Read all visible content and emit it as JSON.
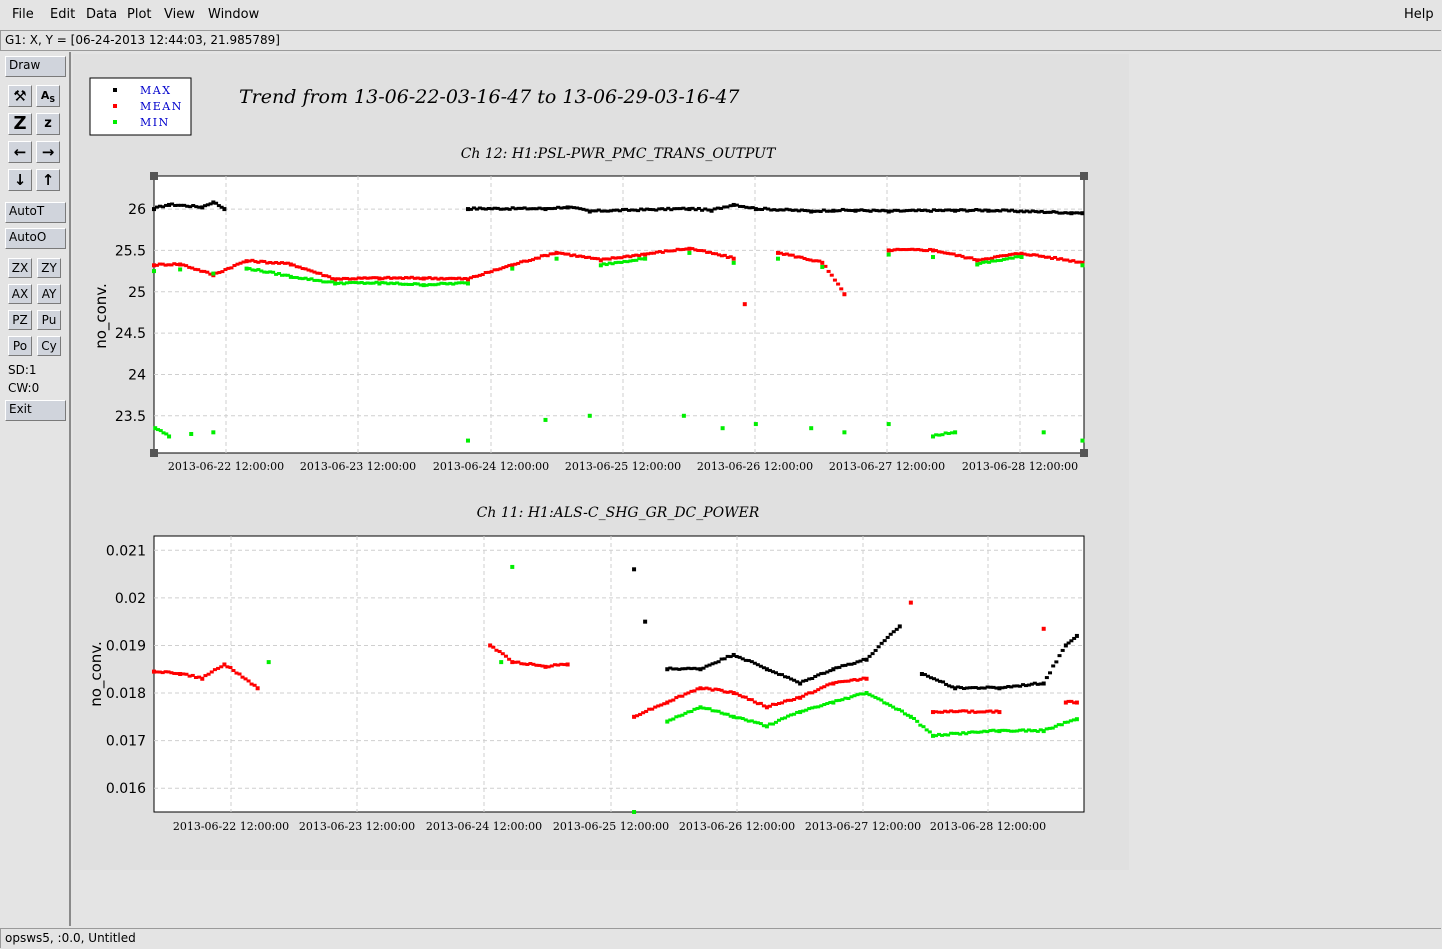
{
  "menus": {
    "file": "File",
    "edit": "Edit",
    "data": "Data",
    "plot": "Plot",
    "view": "View",
    "window": "Window",
    "help": "Help"
  },
  "coord_readout": "G1: X, Y = [06-24-2013 12:44:03, 21.985789]",
  "toolbar": {
    "draw": "Draw",
    "auto_t": "AutoT",
    "auto_o": "AutoO",
    "zx": "ZX",
    "zy": "ZY",
    "ax": "AX",
    "ay": "AY",
    "pz": "PZ",
    "pu": "Pu",
    "po": "Po",
    "cy": "Cy",
    "sd": "SD:1",
    "cw": "CW:0",
    "exit": "Exit"
  },
  "status": "opsws5, :0.0, Untitled",
  "colors": {
    "max": "#000000",
    "mean": "#ff0000",
    "min": "#00ee00",
    "legend_text": "#0000cc"
  },
  "legend": [
    "MAX",
    "MEAN",
    "MIN"
  ],
  "plot_title": "Trend from 13-06-22-03-16-47 to 13-06-29-03-16-47",
  "chart_data": [
    {
      "type": "scatter",
      "title": "Ch 12: H1:PSL-PWR_PMC_TRANS_OUTPUT",
      "ylabel": "no_conv.",
      "xlabel": "",
      "xlim": [
        "2013-06-22 03:16:47",
        "2013-06-29 03:16:47"
      ],
      "ylim": [
        23.05,
        26.4
      ],
      "yticks": [
        23.5,
        24,
        24.5,
        25,
        25.5,
        26
      ],
      "xticks": [
        "2013-06-22 12:00:00",
        "2013-06-23 12:00:00",
        "2013-06-24 12:00:00",
        "2013-06-25 12:00:00",
        "2013-06-26 12:00:00",
        "2013-06-27 12:00:00",
        "2013-06-28 12:00:00"
      ],
      "grid": true,
      "series": [
        {
          "name": "MAX",
          "color": "#000000",
          "points": [
            [
              "2013-06-22 03:16:47",
              26.0
            ],
            [
              "2013-06-22 06:00:00",
              26.05
            ],
            [
              "2013-06-22 12:00:00",
              26.02
            ],
            [
              "2013-06-22 14:00:00",
              26.08
            ],
            [
              "2013-06-22 16:00:00",
              26.0
            ],
            [
              "2013-06-24 12:00:00",
              26.0
            ],
            [
              "2013-06-25 02:00:00",
              26.0
            ],
            [
              "2013-06-25 06:00:00",
              26.02
            ],
            [
              "2013-06-25 10:00:00",
              25.97
            ],
            [
              "2013-06-26 04:00:00",
              26.0
            ],
            [
              "2013-06-26 08:00:00",
              25.98
            ],
            [
              "2013-06-26 12:00:00",
              26.05
            ],
            [
              "2013-06-26 16:00:00",
              26.0
            ],
            [
              "2013-06-27 02:00:00",
              25.97
            ],
            [
              "2013-06-27 06:00:00",
              25.98
            ],
            [
              "2013-06-27 10:00:00",
              25.98
            ],
            [
              "2013-06-27 16:00:00",
              25.97
            ],
            [
              "2013-06-28 04:00:00",
              25.98
            ],
            [
              "2013-06-28 10:00:00",
              25.98
            ],
            [
              "2013-06-29 01:00:00",
              25.95
            ],
            [
              "2013-06-29 03:00:00",
              25.95
            ]
          ]
        },
        {
          "name": "MEAN",
          "color": "#ff0000",
          "points": [
            [
              "2013-06-22 03:16:47",
              25.32
            ],
            [
              "2013-06-22 08:00:00",
              25.33
            ],
            [
              "2013-06-22 14:00:00",
              25.2
            ],
            [
              "2013-06-22 20:00:00",
              25.37
            ],
            [
              "2013-06-23 04:00:00",
              25.33
            ],
            [
              "2013-06-23 12:00:00",
              25.15
            ],
            [
              "2013-06-23 20:00:00",
              25.16
            ],
            [
              "2013-06-24 04:00:00",
              25.16
            ],
            [
              "2013-06-24 12:00:00",
              25.15
            ],
            [
              "2013-06-24 20:00:00",
              25.32
            ],
            [
              "2013-06-25 04:00:00",
              25.47
            ],
            [
              "2013-06-25 12:00:00",
              25.38
            ],
            [
              "2013-06-25 20:00:00",
              25.45
            ],
            [
              "2013-06-26 04:00:00",
              25.52
            ],
            [
              "2013-06-26 12:00:00",
              25.4
            ],
            [
              "2013-06-26 14:00:00",
              24.85
            ],
            [
              "2013-06-26 20:00:00",
              25.47
            ],
            [
              "2013-06-27 04:00:00",
              25.35
            ],
            [
              "2013-06-27 08:00:00",
              24.97
            ],
            [
              "2013-06-27 16:00:00",
              25.5
            ],
            [
              "2013-06-28 00:00:00",
              25.5
            ],
            [
              "2013-06-28 08:00:00",
              25.38
            ],
            [
              "2013-06-28 16:00:00",
              25.46
            ],
            [
              "2013-06-29 03:00:00",
              25.35
            ]
          ]
        },
        {
          "name": "MIN",
          "color": "#00ee00",
          "points": [
            [
              "2013-06-22 03:16:47",
              25.25
            ],
            [
              "2013-06-22 08:00:00",
              25.27
            ],
            [
              "2013-06-22 14:00:00",
              25.22
            ],
            [
              "2013-06-22 20:00:00",
              25.28
            ],
            [
              "2013-06-23 04:00:00",
              25.18
            ],
            [
              "2013-06-23 12:00:00",
              25.1
            ],
            [
              "2013-06-23 20:00:00",
              25.1
            ],
            [
              "2013-06-24 04:00:00",
              25.08
            ],
            [
              "2013-06-24 12:00:00",
              25.1
            ],
            [
              "2013-06-24 20:00:00",
              25.28
            ],
            [
              "2013-06-25 04:00:00",
              25.4
            ],
            [
              "2013-06-25 12:00:00",
              25.32
            ],
            [
              "2013-06-25 20:00:00",
              25.4
            ],
            [
              "2013-06-26 04:00:00",
              25.47
            ],
            [
              "2013-06-26 12:00:00",
              25.35
            ],
            [
              "2013-06-26 20:00:00",
              25.4
            ],
            [
              "2013-06-27 04:00:00",
              25.3
            ],
            [
              "2013-06-27 16:00:00",
              25.45
            ],
            [
              "2013-06-28 00:00:00",
              25.42
            ],
            [
              "2013-06-28 08:00:00",
              25.33
            ],
            [
              "2013-06-28 16:00:00",
              25.42
            ],
            [
              "2013-06-29 03:00:00",
              25.32
            ],
            [
              "2013-06-22 03:30:00",
              23.35
            ],
            [
              "2013-06-22 06:00:00",
              23.25
            ],
            [
              "2013-06-22 10:00:00",
              23.28
            ],
            [
              "2013-06-22 14:00:00",
              23.3
            ],
            [
              "2013-06-24 12:00:00",
              23.2
            ],
            [
              "2013-06-25 02:00:00",
              23.45
            ],
            [
              "2013-06-25 10:00:00",
              23.5
            ],
            [
              "2013-06-26 03:00:00",
              23.5
            ],
            [
              "2013-06-26 10:00:00",
              23.35
            ],
            [
              "2013-06-26 16:00:00",
              23.4
            ],
            [
              "2013-06-27 02:00:00",
              23.35
            ],
            [
              "2013-06-27 08:00:00",
              23.3
            ],
            [
              "2013-06-27 16:00:00",
              23.4
            ],
            [
              "2013-06-28 00:00:00",
              23.25
            ],
            [
              "2013-06-28 04:00:00",
              23.3
            ],
            [
              "2013-06-28 20:00:00",
              23.3
            ],
            [
              "2013-06-29 03:00:00",
              23.2
            ]
          ]
        }
      ]
    },
    {
      "type": "scatter",
      "title": "Ch 11: H1:ALS-C_SHG_GR_DC_POWER",
      "ylabel": "no_conv.",
      "xlabel": "",
      "xlim": [
        "2013-06-22 03:16:47",
        "2013-06-29 03:16:47"
      ],
      "ylim": [
        0.0155,
        0.0213
      ],
      "yticks": [
        0.016,
        0.017,
        0.018,
        0.019,
        0.02,
        0.021
      ],
      "xticks": [
        "2013-06-22 12:00:00",
        "2013-06-23 12:00:00",
        "2013-06-24 12:00:00",
        "2013-06-25 12:00:00",
        "2013-06-26 12:00:00",
        "2013-06-27 12:00:00",
        "2013-06-28 12:00:00"
      ],
      "grid": true,
      "series": [
        {
          "name": "MAX",
          "color": "#000000",
          "points": [
            [
              "2013-06-25 18:00:00",
              0.0206
            ],
            [
              "2013-06-25 20:00:00",
              0.0195
            ],
            [
              "2013-06-26 00:00:00",
              0.0185
            ],
            [
              "2013-06-26 06:00:00",
              0.0185
            ],
            [
              "2013-06-26 12:00:00",
              0.0188
            ],
            [
              "2013-06-26 18:00:00",
              0.0185
            ],
            [
              "2013-06-27 00:00:00",
              0.0182
            ],
            [
              "2013-06-27 06:00:00",
              0.0185
            ],
            [
              "2013-06-27 12:00:00",
              0.0187
            ],
            [
              "2013-06-27 18:00:00",
              0.0194
            ],
            [
              "2013-06-27 22:00:00",
              0.0184
            ],
            [
              "2013-06-28 04:00:00",
              0.0181
            ],
            [
              "2013-06-28 12:00:00",
              0.0181
            ],
            [
              "2013-06-28 20:00:00",
              0.0182
            ],
            [
              "2013-06-29 00:00:00",
              0.019
            ],
            [
              "2013-06-29 02:00:00",
              0.0192
            ]
          ]
        },
        {
          "name": "MEAN",
          "color": "#ff0000",
          "points": [
            [
              "2013-06-22 03:16:47",
              0.01845
            ],
            [
              "2013-06-22 08:00:00",
              0.0184
            ],
            [
              "2013-06-22 12:00:00",
              0.0183
            ],
            [
              "2013-06-22 16:00:00",
              0.0186
            ],
            [
              "2013-06-22 22:00:00",
              0.0181
            ],
            [
              "2013-06-24 16:00:00",
              0.019
            ],
            [
              "2013-06-24 20:00:00",
              0.01865
            ],
            [
              "2013-06-25 02:00:00",
              0.01855
            ],
            [
              "2013-06-25 06:00:00",
              0.0186
            ],
            [
              "2013-06-25 18:00:00",
              0.0175
            ],
            [
              "2013-06-26 00:00:00",
              0.0178
            ],
            [
              "2013-06-26 06:00:00",
              0.0181
            ],
            [
              "2013-06-26 12:00:00",
              0.018
            ],
            [
              "2013-06-26 18:00:00",
              0.0177
            ],
            [
              "2013-06-27 00:00:00",
              0.0179
            ],
            [
              "2013-06-27 06:00:00",
              0.0182
            ],
            [
              "2013-06-27 12:00:00",
              0.0183
            ],
            [
              "2013-06-27 20:00:00",
              0.0199
            ],
            [
              "2013-06-28 00:00:00",
              0.0176
            ],
            [
              "2013-06-28 12:00:00",
              0.0176
            ],
            [
              "2013-06-28 20:00:00",
              0.01935
            ],
            [
              "2013-06-29 00:00:00",
              0.0178
            ],
            [
              "2013-06-29 02:00:00",
              0.0178
            ]
          ]
        },
        {
          "name": "MIN",
          "color": "#00ee00",
          "points": [
            [
              "2013-06-23 00:00:00",
              0.01865
            ],
            [
              "2013-06-24 18:00:00",
              0.01865
            ],
            [
              "2013-06-24 20:00:00",
              0.02065
            ],
            [
              "2013-06-25 18:00:00",
              0.0155
            ],
            [
              "2013-06-26 00:00:00",
              0.0174
            ],
            [
              "2013-06-26 06:00:00",
              0.0177
            ],
            [
              "2013-06-26 12:00:00",
              0.0175
            ],
            [
              "2013-06-26 18:00:00",
              0.0173
            ],
            [
              "2013-06-27 00:00:00",
              0.0176
            ],
            [
              "2013-06-27 06:00:00",
              0.0178
            ],
            [
              "2013-06-27 12:00:00",
              0.018
            ],
            [
              "2013-06-27 20:00:00",
              0.0175
            ],
            [
              "2013-06-28 00:00:00",
              0.0171
            ],
            [
              "2013-06-28 12:00:00",
              0.0172
            ],
            [
              "2013-06-28 20:00:00",
              0.0172
            ],
            [
              "2013-06-29 02:00:00",
              0.01745
            ]
          ]
        }
      ]
    }
  ]
}
